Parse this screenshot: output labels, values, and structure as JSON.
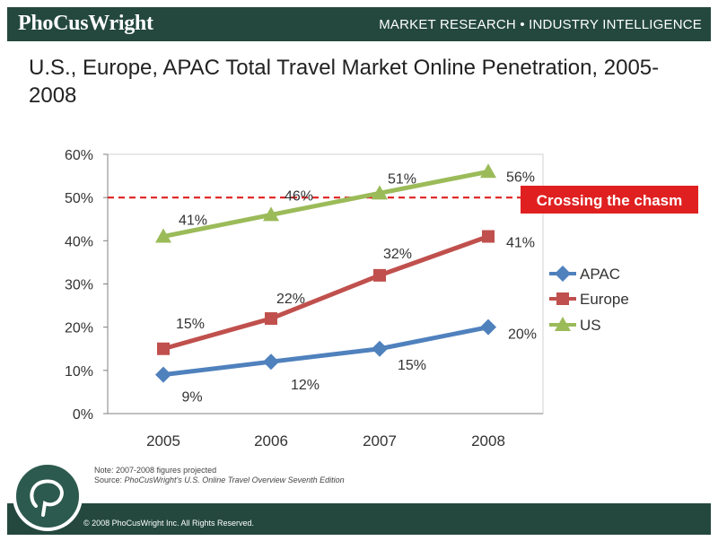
{
  "header": {
    "brand": "PhoCusWright",
    "tagline": "MARKET RESEARCH • INDUSTRY INTELLIGENCE"
  },
  "title": "U.S., Europe, APAC Total Travel Market Online Penetration, 2005-2008",
  "chart_data": {
    "type": "line",
    "title": "U.S., Europe, APAC Total Travel Market Online Penetration, 2005-2008",
    "categories": [
      "2005",
      "2006",
      "2007",
      "2008"
    ],
    "yticks": [
      "0%",
      "10%",
      "20%",
      "30%",
      "40%",
      "50%",
      "60%"
    ],
    "ylim": [
      0,
      60
    ],
    "grid": false,
    "legend_position": "right",
    "series": [
      {
        "name": "APAC",
        "values": [
          9,
          12,
          15,
          20
        ],
        "labels": [
          "9%",
          "12%",
          "15%",
          "20%"
        ],
        "color": "#4f81bd",
        "marker": "diamond"
      },
      {
        "name": "Europe",
        "values": [
          15,
          22,
          32,
          41
        ],
        "labels": [
          "15%",
          "22%",
          "32%",
          "41%"
        ],
        "color": "#c0504d",
        "marker": "square"
      },
      {
        "name": "US",
        "values": [
          41,
          46,
          51,
          56
        ],
        "labels": [
          "41%",
          "46%",
          "51%",
          "56%"
        ],
        "color": "#9bbb59",
        "marker": "triangle"
      }
    ],
    "reference_line": {
      "value": 50,
      "color": "#e02020",
      "label": "Crossing the chasm"
    }
  },
  "note": {
    "line1": "Note: 2007-2008 figures projected",
    "source_prefix": "Source: ",
    "source_text": "PhoCusWright's U.S. Online Travel Overview Seventh Edition"
  },
  "footer": {
    "copyright": "© 2008 PhoCusWright Inc. All Rights Reserved."
  },
  "logo": {
    "icon": "speech-bubble-p-icon"
  }
}
